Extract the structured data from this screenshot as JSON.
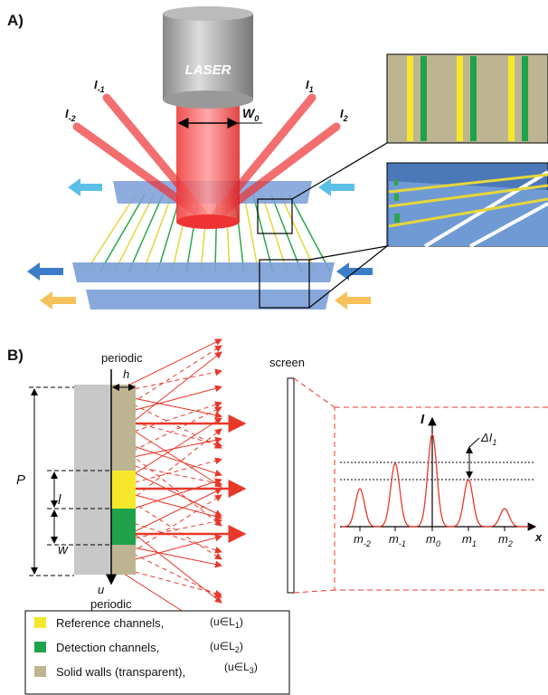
{
  "panel_a": {
    "label": "A)",
    "laser": "LASER",
    "beams": [
      {
        "main": "I",
        "sub": "-2"
      },
      {
        "main": "I",
        "sub": "-1"
      },
      {
        "main": "I",
        "sub": "1"
      },
      {
        "main": "I",
        "sub": "2"
      }
    ],
    "width": {
      "main": "W",
      "sub": "0"
    }
  },
  "panel_b": {
    "label": "B)",
    "top": "periodic",
    "h": "h",
    "p": "P",
    "l": "l",
    "w": "w",
    "u": "u",
    "bottom": "periodic",
    "screen": "screen",
    "intensity_axis": "I",
    "delta": {
      "main": "ΔI",
      "sub": "1"
    },
    "orders": [
      {
        "main": "m",
        "sub": "-2"
      },
      {
        "main": "m",
        "sub": "-1"
      },
      {
        "main": "m",
        "sub": "0"
      },
      {
        "main": "m",
        "sub": "1"
      },
      {
        "main": "m",
        "sub": "2"
      }
    ],
    "x_axis": "x"
  },
  "legend": [
    {
      "label": "Reference channels,",
      "set": {
        "main": "(u∈L",
        "sub": "1",
        "post": ")"
      }
    },
    {
      "label": "Detection channels,",
      "set": {
        "main": "(u∈L",
        "sub": "2",
        "post": ")"
      }
    },
    {
      "label": "Solid walls (transparent),",
      "set": {
        "main": "(u∈L",
        "sub": "3",
        "post": ")"
      }
    }
  ]
}
